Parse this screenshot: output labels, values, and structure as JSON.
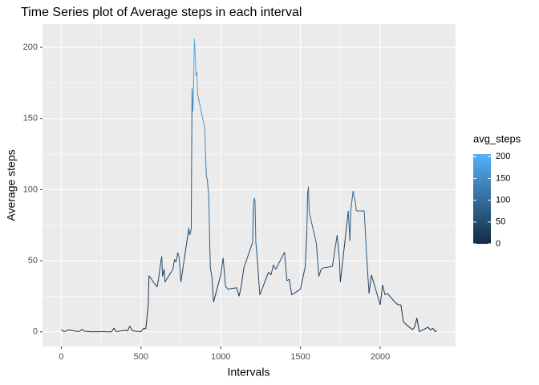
{
  "chart_data": {
    "type": "line",
    "title": "Time Series plot of Average steps in each interval",
    "x_label": "Intervals",
    "y_label": "Average steps",
    "x": [
      0,
      15,
      30,
      45,
      100,
      115,
      130,
      145,
      200,
      215,
      230,
      245,
      300,
      315,
      330,
      345,
      400,
      415,
      430,
      445,
      500,
      515,
      530,
      545,
      550,
      600,
      610,
      620,
      630,
      635,
      645,
      650,
      700,
      710,
      720,
      730,
      740,
      750,
      800,
      805,
      815,
      820,
      825,
      830,
      835,
      840,
      845,
      850,
      855,
      900,
      905,
      910,
      915,
      925,
      930,
      935,
      945,
      955,
      1000,
      1015,
      1030,
      1045,
      1100,
      1115,
      1130,
      1145,
      1200,
      1205,
      1210,
      1215,
      1220,
      1230,
      1245,
      1300,
      1315,
      1330,
      1345,
      1400,
      1415,
      1430,
      1445,
      1500,
      1515,
      1530,
      1540,
      1545,
      1550,
      1555,
      1600,
      1615,
      1630,
      1645,
      1700,
      1715,
      1730,
      1745,
      1750,
      1800,
      1810,
      1815,
      1830,
      1845,
      1850,
      1900,
      1915,
      1930,
      1945,
      2000,
      2015,
      2030,
      2045,
      2100,
      2115,
      2130,
      2145,
      2200,
      2215,
      2230,
      2245,
      2300,
      2315,
      2330,
      2345,
      2355
    ],
    "series": [
      {
        "name": "avg_steps",
        "values": [
          1.7,
          0.2,
          0.5,
          1.5,
          0.3,
          0.3,
          1.8,
          0.4,
          0,
          0.2,
          0,
          0.2,
          0,
          0,
          2.6,
          0.1,
          1.2,
          0.5,
          4.1,
          0.8,
          0,
          2.4,
          2.1,
          18.3,
          39.5,
          31.5,
          37,
          46,
          53,
          39,
          44,
          35,
          44,
          51,
          49,
          55.7,
          52,
          35,
          73,
          68,
          72,
          171,
          155,
          177,
          206,
          195,
          180,
          183,
          167,
          143,
          124,
          109,
          108,
          95,
          66,
          45,
          38,
          21,
          40,
          52,
          32,
          30,
          31,
          25,
          33,
          45,
          63,
          88,
          94,
          92,
          63,
          50,
          26,
          42,
          40,
          47,
          44,
          56,
          36,
          37,
          26,
          30,
          38,
          46,
          71,
          98,
          102,
          84,
          62,
          39,
          44,
          45,
          46,
          57,
          68,
          50,
          35,
          85,
          64,
          85,
          99,
          91,
          85,
          85,
          53,
          27,
          40,
          19,
          33,
          26,
          27,
          20,
          19,
          19,
          7,
          1.6,
          3,
          9.8,
          0.1,
          3.3,
          1.3,
          2.6,
          0,
          1.1
        ]
      }
    ],
    "xlim": [
      -117.75,
      2472.75
    ],
    "xticks": [
      0,
      500,
      1000,
      1500,
      2000
    ],
    "ylim": [
      -10.3,
      216.4
    ],
    "yticks": [
      0,
      50,
      100,
      150,
      200
    ],
    "grid": true,
    "minor_grid": true,
    "color_scale": {
      "title": "avg_steps",
      "low": "#132B43",
      "high": "#56B1F7",
      "ticks": [
        0,
        50,
        100,
        150,
        200
      ]
    }
  }
}
